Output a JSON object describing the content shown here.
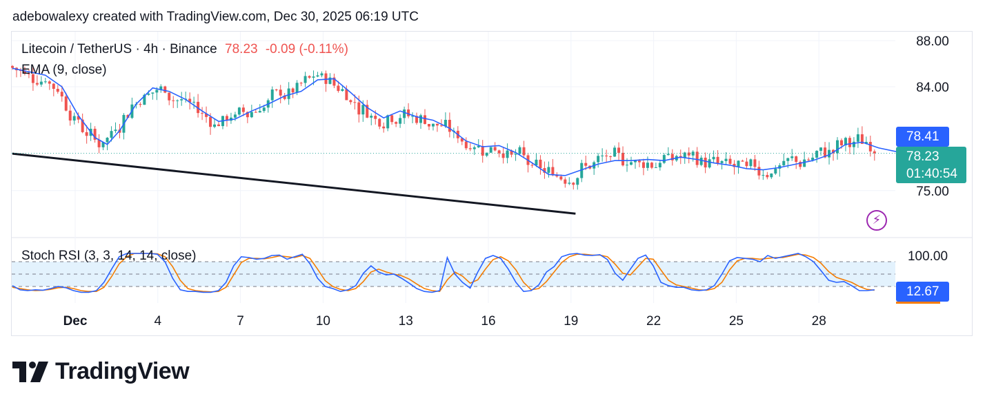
{
  "attribution": "adebowalexy created with TradingView.com, Dec 30, 2025 06:19 UTC",
  "legend": {
    "symbol": "Litecoin / TetherUS · 4h · Binance",
    "price": "78.23",
    "change": "-0.09",
    "change_pct": "(-0.11%)",
    "ema_label": "EMA (9, close)"
  },
  "price_axis": {
    "ticks": [
      "88.00",
      "84.00",
      "75.00"
    ]
  },
  "badges": {
    "ema_value": "78.41",
    "last_price": "78.23",
    "countdown": "01:40:54",
    "stoch_value": "12.67"
  },
  "rsi_legend": "Stoch RSI (3, 3, 14, 14, close)",
  "rsi_axis": {
    "ticks": [
      "100.00"
    ]
  },
  "time_axis": [
    "Dec",
    "4",
    "7",
    "10",
    "13",
    "16",
    "19",
    "22",
    "25",
    "28"
  ],
  "brand": "TradingView",
  "colors": {
    "up": "#26a69a",
    "down": "#ef5350",
    "ema": "#2962ff",
    "k": "#2962ff",
    "d": "#f57c00",
    "trendline": "#131722",
    "rsi_band": "#e3f2fd"
  },
  "icons": {
    "replay": "lightning-icon",
    "logo": "tradingview-logo-icon"
  },
  "chart_data": [
    {
      "type": "candlestick",
      "title": "Litecoin / TetherUS · 4h · Binance",
      "x_ticks": [
        "Dec",
        "4",
        "7",
        "10",
        "13",
        "16",
        "19",
        "22",
        "25",
        "28"
      ],
      "y_ticks": [
        88,
        84,
        75
      ],
      "ylim": [
        72.8,
        88.7
      ],
      "series": [
        {
          "name": "EMA (9, close)",
          "points": [
            [
              0,
              85.6
            ],
            [
              8,
              85.0
            ],
            [
              12,
              84.0
            ],
            [
              16,
              81.5
            ],
            [
              20,
              79.6
            ],
            [
              23,
              79.0
            ],
            [
              26,
              80.2
            ],
            [
              30,
              82.5
            ],
            [
              34,
              83.9
            ],
            [
              38,
              83.6
            ],
            [
              42,
              82.9
            ],
            [
              46,
              81.9
            ],
            [
              50,
              81.0
            ],
            [
              54,
              81.2
            ],
            [
              58,
              81.9
            ],
            [
              62,
              82.5
            ],
            [
              66,
              83.2
            ],
            [
              70,
              83.6
            ],
            [
              74,
              84.6
            ],
            [
              78,
              84.7
            ],
            [
              82,
              83.5
            ],
            [
              86,
              82.2
            ],
            [
              90,
              81.3
            ],
            [
              94,
              81.9
            ],
            [
              98,
              81.4
            ],
            [
              102,
              81.1
            ],
            [
              106,
              80.4
            ],
            [
              110,
              79.3
            ],
            [
              114,
              78.8
            ],
            [
              118,
              78.9
            ],
            [
              122,
              78.3
            ],
            [
              126,
              77.4
            ],
            [
              130,
              76.4
            ],
            [
              134,
              76.3
            ],
            [
              138,
              76.8
            ],
            [
              142,
              77.3
            ],
            [
              146,
              77.6
            ],
            [
              150,
              77.6
            ],
            [
              154,
              77.7
            ],
            [
              158,
              77.6
            ],
            [
              162,
              77.9
            ],
            [
              166,
              77.7
            ],
            [
              170,
              77.4
            ],
            [
              174,
              77.2
            ],
            [
              178,
              76.9
            ],
            [
              182,
              76.8
            ],
            [
              186,
              77.0
            ],
            [
              190,
              77.3
            ],
            [
              194,
              77.6
            ],
            [
              198,
              78.1
            ],
            [
              202,
              79.0
            ],
            [
              206,
              79.2
            ],
            [
              210,
              78.7
            ],
            [
              214,
              78.4
            ],
            [
              217,
              78.41
            ]
          ]
        },
        {
          "name": "Trend line",
          "points": [
            [
              0,
              78.2
            ],
            [
              131,
              73.0
            ]
          ]
        }
      ],
      "last": 78.23
    },
    {
      "type": "line",
      "title": "Stoch RSI (3, 3, 14, 14, close)",
      "y_ticks": [
        100
      ],
      "ylim": [
        0,
        100
      ],
      "levels": [
        80,
        50,
        20
      ],
      "series": [
        {
          "name": "K",
          "values": [
            22,
            12,
            10,
            12,
            11,
            15,
            20,
            17,
            10,
            6,
            6,
            10,
            30,
            62,
            92,
            100,
            100,
            100,
            100,
            98,
            80,
            40,
            12,
            8,
            8,
            6,
            6,
            10,
            30,
            70,
            92,
            90,
            86,
            88,
            95,
            96,
            86,
            92,
            98,
            75,
            40,
            20,
            15,
            8,
            12,
            22,
            52,
            70,
            55,
            48,
            50,
            40,
            28,
            15,
            8,
            6,
            10,
            90,
            50,
            30,
            16,
            55,
            88,
            95,
            88,
            62,
            30,
            8,
            10,
            24,
            55,
            68,
            92,
            98,
            100,
            96,
            95,
            97,
            85,
            52,
            35,
            62,
            88,
            96,
            70,
            30,
            22,
            18,
            18,
            12,
            10,
            12,
            22,
            50,
            82,
            90,
            88,
            86,
            80,
            95,
            88,
            92,
            96,
            100,
            92,
            80,
            58,
            35,
            30,
            32,
            22,
            10,
            10,
            12
          ]
        },
        {
          "name": "D",
          "values": [
            18,
            15,
            12,
            10,
            11,
            13,
            17,
            18,
            15,
            10,
            8,
            8,
            18,
            44,
            75,
            92,
            100,
            100,
            100,
            99,
            92,
            68,
            35,
            15,
            10,
            8,
            7,
            8,
            18,
            48,
            78,
            88,
            88,
            87,
            90,
            94,
            92,
            90,
            95,
            88,
            62,
            34,
            20,
            13,
            10,
            15,
            32,
            55,
            62,
            55,
            50,
            46,
            38,
            26,
            15,
            10,
            8,
            36,
            55,
            45,
            28,
            36,
            62,
            85,
            92,
            82,
            60,
            30,
            12,
            15,
            32,
            55,
            78,
            92,
            98,
            98,
            96,
            96,
            92,
            74,
            52,
            48,
            68,
            88,
            86,
            60,
            35,
            24,
            20,
            16,
            12,
            11,
            15,
            30,
            60,
            82,
            88,
            88,
            86,
            88,
            90,
            90,
            94,
            98,
            96,
            90,
            76,
            56,
            42,
            36,
            30,
            20,
            13,
            11
          ]
        }
      ],
      "last": 12.67
    }
  ]
}
